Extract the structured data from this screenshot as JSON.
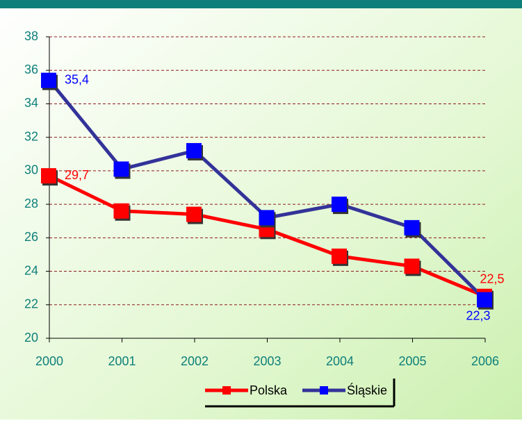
{
  "chart_data": {
    "type": "line",
    "categories": [
      "2000",
      "2001",
      "2002",
      "2003",
      "2004",
      "2005",
      "2006"
    ],
    "series": [
      {
        "name": "Polska",
        "color": "#ff0000",
        "marker_color": "#ff0000",
        "values": [
          29.7,
          27.6,
          27.4,
          26.5,
          24.9,
          24.3,
          22.5
        ],
        "value_labels": [
          "29,7",
          null,
          null,
          null,
          null,
          null,
          "22,5"
        ]
      },
      {
        "name": "Śląskie",
        "color": "#333399",
        "marker_color": "#0000ff",
        "values": [
          35.4,
          30.1,
          31.2,
          27.2,
          28.0,
          26.6,
          22.3
        ],
        "value_labels": [
          "35,4",
          null,
          null,
          null,
          null,
          null,
          "22,3"
        ]
      }
    ],
    "ylim": [
      20,
      38
    ],
    "yticks": [
      20,
      22,
      24,
      26,
      28,
      30,
      32,
      34,
      36,
      38
    ],
    "grid": true,
    "legend": "bottom"
  }
}
